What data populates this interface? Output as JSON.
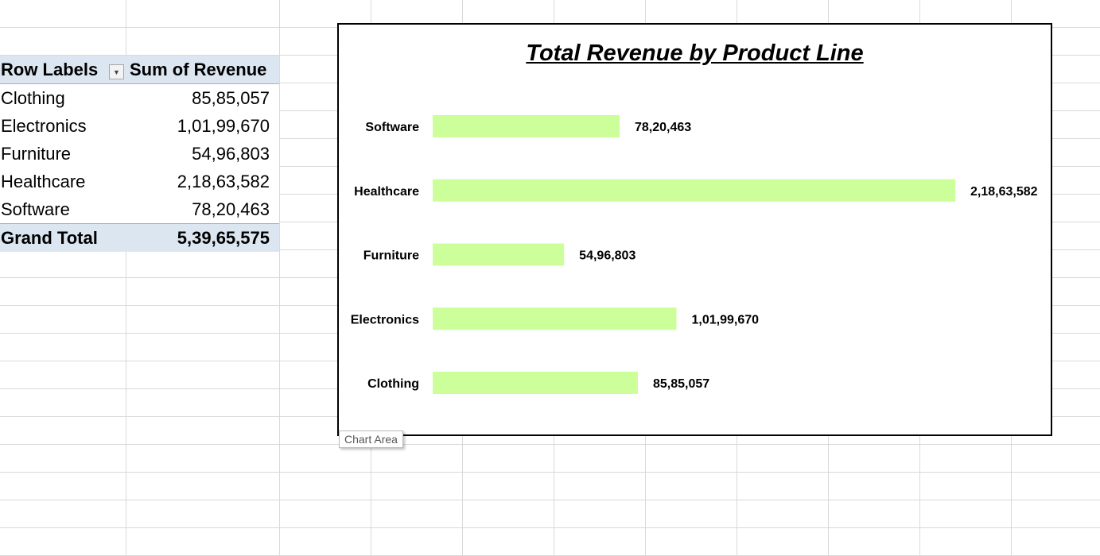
{
  "pivot": {
    "header": {
      "row_labels": "Row Labels",
      "value_header": "Sum of Revenue",
      "filter_icon": "dropdown-arrow-icon"
    },
    "rows": [
      {
        "label": "Clothing",
        "value": "85,85,057"
      },
      {
        "label": "Electronics",
        "value": "1,01,99,670"
      },
      {
        "label": "Furniture",
        "value": "54,96,803"
      },
      {
        "label": "Healthcare",
        "value": "2,18,63,582"
      },
      {
        "label": "Software",
        "value": "78,20,463"
      }
    ],
    "total": {
      "label": "Grand Total",
      "value": "5,39,65,575"
    }
  },
  "chart_data": {
    "type": "bar",
    "orientation": "horizontal",
    "title": "Total Revenue by Product Line",
    "categories": [
      "Software",
      "Healthcare",
      "Furniture",
      "Electronics",
      "Clothing"
    ],
    "values": [
      7820463,
      21863582,
      5496803,
      10199670,
      8585057
    ],
    "data_labels": [
      "78,20,463",
      "2,18,63,582",
      "54,96,803",
      "1,01,99,670",
      "85,85,057"
    ],
    "xlim": [
      0,
      21863582
    ],
    "bar_color": "#ccff99",
    "grid": false,
    "legend": "none"
  },
  "tooltip": {
    "text": "Chart Area"
  }
}
